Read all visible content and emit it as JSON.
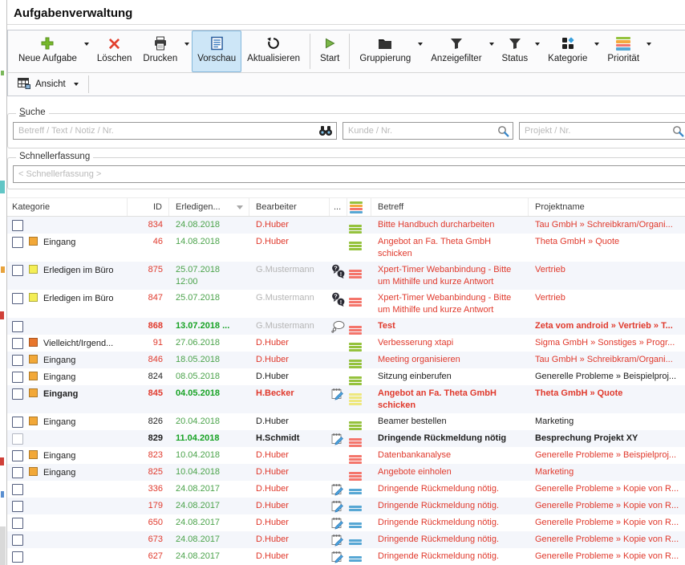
{
  "window": {
    "title": "Aufgabenverwaltung"
  },
  "toolbar": {
    "buttons": [
      {
        "id": "neue-aufgabe",
        "label": "Neue Aufgabe",
        "icon": "plus",
        "dropdown": true
      },
      {
        "id": "loeschen",
        "label": "Löschen",
        "icon": "delete-x",
        "dropdown": false
      },
      {
        "id": "drucken",
        "label": "Drucken",
        "icon": "printer",
        "dropdown": true
      },
      {
        "id": "vorschau",
        "label": "Vorschau",
        "icon": "preview-doc",
        "dropdown": false,
        "active": true
      },
      {
        "id": "aktualisieren",
        "label": "Aktualisieren",
        "icon": "refresh",
        "dropdown": false
      },
      {
        "id": "start",
        "label": "Start",
        "icon": "play",
        "dropdown": false,
        "sep_before": true
      },
      {
        "id": "gruppierung",
        "label": "Gruppierung",
        "icon": "folder",
        "dropdown": true,
        "sep_before": true
      },
      {
        "id": "anzeigefilter",
        "label": "Anzeigefilter",
        "icon": "funnel",
        "dropdown": true
      },
      {
        "id": "status",
        "label": "Status",
        "icon": "funnel",
        "dropdown": true
      },
      {
        "id": "kategorie",
        "label": "Kategorie",
        "icon": "category-squares",
        "dropdown": true
      },
      {
        "id": "prioritaet",
        "label": "Priorität",
        "icon": "priority-lines",
        "dropdown": true
      }
    ],
    "view_button": {
      "label": "Ansicht"
    }
  },
  "search": {
    "legend": "Suche",
    "fields": [
      {
        "placeholder": "Betreff / Text / Notiz / Nr.",
        "icon": "binoculars"
      },
      {
        "placeholder": "Kunde / Nr.",
        "icon": "magnifier"
      },
      {
        "placeholder": "Projekt / Nr.",
        "icon": "magnifier"
      }
    ]
  },
  "quick_entry": {
    "legend": "Schnellerfassung",
    "placeholder": "< Schnellerfassung >"
  },
  "table": {
    "columns": [
      {
        "label": "Kategorie"
      },
      {
        "label": "ID"
      },
      {
        "label": "Erledigen...",
        "sorted": "desc"
      },
      {
        "label": "Bearbeiter"
      },
      {
        "label": "..."
      },
      {
        "label": "",
        "icon": "priority-multi"
      },
      {
        "label": "Betreff"
      },
      {
        "label": "Projektname"
      }
    ],
    "rows": [
      {
        "id": "834",
        "id_color": "red",
        "bold": false,
        "category": null,
        "date": [
          "24.08.2018"
        ],
        "assignee": "D.Huber",
        "assignee_color": "red",
        "note_icon": null,
        "priority": "green",
        "betreff": "Bitte Handbuch durcharbeiten",
        "projekt": "Tau GmbH » Schreibkram/Organi...",
        "text_color": "red",
        "tall": false,
        "checkbox": "normal"
      },
      {
        "id": "46",
        "id_color": "red",
        "bold": false,
        "category": {
          "color": "orange",
          "label": "Eingang"
        },
        "date": [
          "14.08.2018"
        ],
        "assignee": "D.Huber",
        "assignee_color": "red",
        "note_icon": null,
        "priority": "green",
        "betreff": "Angebot an Fa. Theta GmbH schicken",
        "projekt": "Theta GmbH » Quote",
        "text_color": "red",
        "tall": true,
        "checkbox": "normal"
      },
      {
        "id": "875",
        "id_color": "red",
        "bold": false,
        "category": {
          "color": "yellow",
          "label": "Erledigen im Büro"
        },
        "date": [
          "25.07.2018",
          "12:00"
        ],
        "assignee": "G.Mustermann",
        "assignee_color": "gray",
        "note_icon": "question-exclamation",
        "priority": "red",
        "betreff": "Xpert-Timer Webanbindung - Bitte um Mithilfe und kurze Antwort",
        "projekt": "Vertrieb",
        "text_color": "red",
        "tall": true,
        "checkbox": "normal"
      },
      {
        "id": "847",
        "id_color": "red",
        "bold": false,
        "category": {
          "color": "yellow",
          "label": "Erledigen im Büro"
        },
        "date": [
          "25.07.2018"
        ],
        "assignee": "G.Mustermann",
        "assignee_color": "gray",
        "note_icon": "question-exclamation",
        "priority": "red",
        "betreff": "Xpert-Timer Webanbindung - Bitte um Mithilfe und kurze Antwort",
        "projekt": "Vertrieb",
        "text_color": "red",
        "tall": true,
        "checkbox": "normal"
      },
      {
        "id": "868",
        "id_color": "red",
        "bold": true,
        "category": null,
        "date": [
          "13.07.2018 ..."
        ],
        "assignee": "G.Mustermann",
        "assignee_color": "gray",
        "note_icon": "thought-bubble",
        "priority": "red",
        "betreff": "Test",
        "projekt": "Zeta vom android » Vertrieb » T...",
        "text_color": "red",
        "tall": false,
        "checkbox": "normal"
      },
      {
        "id": "91",
        "id_color": "red",
        "bold": false,
        "category": {
          "color": "darkorange",
          "label": "Vielleicht/Irgend..."
        },
        "date": [
          "27.06.2018"
        ],
        "assignee": "D.Huber",
        "assignee_color": "red",
        "note_icon": null,
        "priority": "green",
        "betreff": "Verbesserung xtapi",
        "projekt": "Sigma GmbH » Sonstiges » Progr...",
        "text_color": "red",
        "tall": false,
        "checkbox": "normal"
      },
      {
        "id": "846",
        "id_color": "red",
        "bold": false,
        "category": {
          "color": "orange",
          "label": "Eingang"
        },
        "date": [
          "18.05.2018"
        ],
        "assignee": "D.Huber",
        "assignee_color": "red",
        "note_icon": null,
        "priority": "green",
        "betreff": "Meeting organisieren",
        "projekt": "Tau GmbH » Schreibkram/Organi...",
        "text_color": "red",
        "tall": false,
        "checkbox": "normal"
      },
      {
        "id": "824",
        "id_color": "black",
        "bold": false,
        "category": {
          "color": "orange",
          "label": "Eingang"
        },
        "date": [
          "08.05.2018"
        ],
        "assignee": "D.Huber",
        "assignee_color": "black",
        "note_icon": null,
        "priority": "green",
        "betreff": "Sitzung einberufen",
        "projekt": "Generelle Probleme » Beispielproj...",
        "text_color": "black",
        "tall": false,
        "checkbox": "normal"
      },
      {
        "id": "845",
        "id_color": "red",
        "bold": true,
        "category": {
          "color": "orange",
          "label": "Eingang"
        },
        "date": [
          "04.05.2018"
        ],
        "assignee": "H.Becker",
        "assignee_color": "red",
        "note_icon": "note-pencil",
        "priority": "yellow",
        "betreff": "Angebot an Fa. Theta GmbH schicken",
        "projekt": "Theta GmbH » Quote",
        "text_color": "red",
        "tall": true,
        "checkbox": "normal"
      },
      {
        "id": "826",
        "id_color": "black",
        "bold": false,
        "category": {
          "color": "orange",
          "label": "Eingang"
        },
        "date": [
          "20.04.2018"
        ],
        "assignee": "D.Huber",
        "assignee_color": "black",
        "note_icon": null,
        "priority": "green",
        "betreff": "Beamer bestellen",
        "projekt": "Marketing",
        "text_color": "black",
        "tall": false,
        "checkbox": "normal"
      },
      {
        "id": "829",
        "id_color": "black",
        "bold": true,
        "category": null,
        "date": [
          "11.04.2018"
        ],
        "assignee": "H.Schmidt",
        "assignee_color": "black",
        "note_icon": "note-pencil",
        "priority": "red",
        "betreff": "Dringende Rückmeldung nötig",
        "projekt": "Besprechung Projekt XY",
        "text_color": "black",
        "tall": false,
        "checkbox": "muted"
      },
      {
        "id": "823",
        "id_color": "red",
        "bold": false,
        "category": {
          "color": "orange",
          "label": "Eingang"
        },
        "date": [
          "10.04.2018"
        ],
        "assignee": "D.Huber",
        "assignee_color": "red",
        "note_icon": null,
        "priority": "red",
        "betreff": "Datenbankanalyse",
        "projekt": "Generelle Probleme » Beispielproj...",
        "text_color": "red",
        "tall": false,
        "checkbox": "normal"
      },
      {
        "id": "825",
        "id_color": "red",
        "bold": false,
        "category": {
          "color": "orange",
          "label": "Eingang"
        },
        "date": [
          "10.04.2018"
        ],
        "assignee": "D.Huber",
        "assignee_color": "red",
        "note_icon": null,
        "priority": "red",
        "betreff": "Angebote einholen",
        "projekt": "Marketing",
        "text_color": "red",
        "tall": false,
        "checkbox": "normal"
      },
      {
        "id": "336",
        "id_color": "red",
        "bold": false,
        "category": null,
        "date": [
          "24.08.2017"
        ],
        "assignee": "D.Huber",
        "assignee_color": "red",
        "note_icon": "note-pencil",
        "priority": "blue",
        "betreff": "Dringende Rückmeldung nötig.",
        "projekt": "Generelle Probleme » Kopie von R...",
        "text_color": "red",
        "tall": false,
        "checkbox": "normal"
      },
      {
        "id": "179",
        "id_color": "red",
        "bold": false,
        "category": null,
        "date": [
          "24.08.2017"
        ],
        "assignee": "D.Huber",
        "assignee_color": "red",
        "note_icon": "note-pencil",
        "priority": "blue",
        "betreff": "Dringende Rückmeldung nötig.",
        "projekt": "Generelle Probleme » Kopie von R...",
        "text_color": "red",
        "tall": false,
        "checkbox": "normal"
      },
      {
        "id": "650",
        "id_color": "red",
        "bold": false,
        "category": null,
        "date": [
          "24.08.2017"
        ],
        "assignee": "D.Huber",
        "assignee_color": "red",
        "note_icon": "note-pencil",
        "priority": "blue",
        "betreff": "Dringende Rückmeldung nötig.",
        "projekt": "Generelle Probleme » Kopie von R...",
        "text_color": "red",
        "tall": false,
        "checkbox": "normal"
      },
      {
        "id": "673",
        "id_color": "red",
        "bold": false,
        "category": null,
        "date": [
          "24.08.2017"
        ],
        "assignee": "D.Huber",
        "assignee_color": "red",
        "note_icon": "note-pencil",
        "priority": "blue",
        "betreff": "Dringende Rückmeldung nötig.",
        "projekt": "Generelle Probleme » Kopie von R...",
        "text_color": "red",
        "tall": false,
        "checkbox": "normal"
      },
      {
        "id": "627",
        "id_color": "red",
        "bold": false,
        "category": null,
        "date": [
          "24.08.2017"
        ],
        "assignee": "D.Huber",
        "assignee_color": "red",
        "note_icon": "note-pencil",
        "priority": "blue",
        "betreff": "Dringende Rückmeldung nötig.",
        "projekt": "Generelle Probleme » Kopie von R...",
        "text_color": "red",
        "tall": false,
        "checkbox": "normal"
      }
    ]
  },
  "colors": {
    "accent_red": "#e0392c",
    "text_black": "#1e1e1e",
    "muted_gray": "#b5b5b5",
    "date_green": "#4ba34b",
    "date_green_bold": "#17a224",
    "prio_green": "#95c23d",
    "prio_red": "#f4756b",
    "prio_yellow": "#eee87f",
    "prio_blue": "#57a7d4",
    "prio_orange": "#f5a93d",
    "cat_orange": "#f2a838",
    "cat_yellow": "#f4ee55",
    "cat_darkorange": "#e8762c",
    "active_button_bg": "#cde6f7",
    "active_button_border": "#86b8dc"
  }
}
